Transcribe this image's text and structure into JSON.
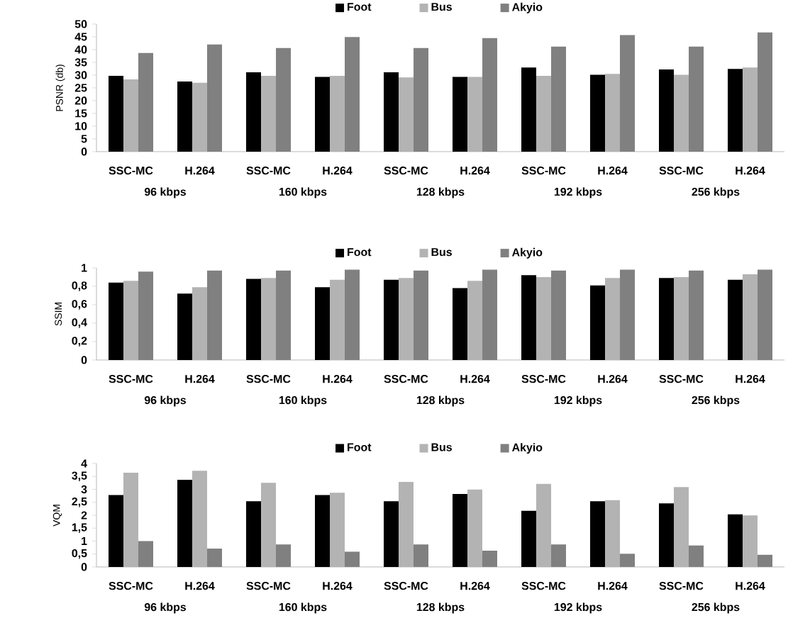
{
  "chart_data": [
    {
      "type": "bar",
      "ylabel": "PSNR (db)",
      "categories": [
        "SSC-MC",
        "H.264",
        "SSC-MC",
        "H.264",
        "SSC-MC",
        "H.264",
        "SSC-MC",
        "H.264",
        "SSC-MC",
        "H.264"
      ],
      "annotations": [
        "96 kbps",
        "160 kbps",
        "128 kbps",
        "192 kbps",
        "256 kbps"
      ],
      "series": [
        {
          "name": "Foot",
          "color": "#000000",
          "values": [
            29.7,
            27.5,
            31.1,
            29.3,
            31.1,
            29.3,
            33.0,
            30.1,
            32.2,
            32.4
          ]
        },
        {
          "name": "Bus",
          "color": "#b3b3b3",
          "values": [
            28.3,
            27.0,
            29.7,
            29.7,
            29.1,
            29.3,
            29.7,
            30.5,
            30.1,
            33.0
          ]
        },
        {
          "name": "Akyio",
          "color": "#808080",
          "values": [
            38.7,
            42.0,
            40.6,
            44.9,
            40.6,
            44.5,
            41.2,
            45.7,
            41.2,
            46.7
          ]
        }
      ],
      "ylim": [
        0,
        50
      ],
      "yticks": [
        0,
        5,
        10,
        15,
        20,
        25,
        30,
        35,
        40,
        45,
        50
      ],
      "legend": "top"
    },
    {
      "type": "bar",
      "ylabel": "SSIM",
      "categories": [
        "SSC-MC",
        "H.264",
        "SSC-MC",
        "H.264",
        "SSC-MC",
        "H.264",
        "SSC-MC",
        "H.264",
        "SSC-MC",
        "H.264"
      ],
      "annotations": [
        "96 kbps",
        "160 kbps",
        "128 kbps",
        "192 kbps",
        "256 kbps"
      ],
      "series": [
        {
          "name": "Foot",
          "color": "#000000",
          "values": [
            0.84,
            0.72,
            0.88,
            0.79,
            0.87,
            0.78,
            0.92,
            0.81,
            0.89,
            0.87
          ]
        },
        {
          "name": "Bus",
          "color": "#b3b3b3",
          "values": [
            0.86,
            0.79,
            0.89,
            0.87,
            0.89,
            0.86,
            0.9,
            0.89,
            0.9,
            0.93
          ]
        },
        {
          "name": "Akyio",
          "color": "#808080",
          "values": [
            0.96,
            0.97,
            0.97,
            0.98,
            0.97,
            0.98,
            0.97,
            0.98,
            0.97,
            0.98
          ]
        }
      ],
      "ylim": [
        0,
        1
      ],
      "yticks": [
        0,
        {
          "value": 0.2,
          "label": "0,2"
        },
        {
          "value": 0.4,
          "label": "0,4"
        },
        {
          "value": 0.6,
          "label": "0,6"
        },
        {
          "value": 0.8,
          "label": "0,8"
        },
        1
      ],
      "legend": "top"
    },
    {
      "type": "bar",
      "ylabel": "VQM",
      "categories": [
        "SSC-MC",
        "H.264",
        "SSC-MC",
        "H.264",
        "SSC-MC",
        "H.264",
        "SSC-MC",
        "H.264",
        "SSC-MC",
        "H.264"
      ],
      "annotations": [
        "96 kbps",
        "160 kbps",
        "128 kbps",
        "192 kbps",
        "256 kbps"
      ],
      "series": [
        {
          "name": "Foot",
          "color": "#000000",
          "values": [
            2.78,
            3.37,
            2.54,
            2.78,
            2.54,
            2.82,
            2.17,
            2.54,
            2.46,
            2.03
          ]
        },
        {
          "name": "Bus",
          "color": "#b3b3b3",
          "values": [
            3.64,
            3.72,
            3.25,
            2.87,
            3.29,
            2.99,
            3.21,
            2.58,
            3.09,
            1.99
          ]
        },
        {
          "name": "Akyio",
          "color": "#808080",
          "values": [
            1.0,
            0.71,
            0.87,
            0.59,
            0.87,
            0.63,
            0.87,
            0.51,
            0.83,
            0.47
          ]
        }
      ],
      "ylim": [
        0,
        4
      ],
      "yticks": [
        0,
        {
          "value": 0.5,
          "label": "0,5"
        },
        1,
        {
          "value": 1.5,
          "label": "1,5"
        },
        2,
        {
          "value": 2.5,
          "label": "2,5"
        },
        3,
        {
          "value": 3.5,
          "label": "3,5"
        },
        4
      ],
      "legend": "top"
    }
  ]
}
